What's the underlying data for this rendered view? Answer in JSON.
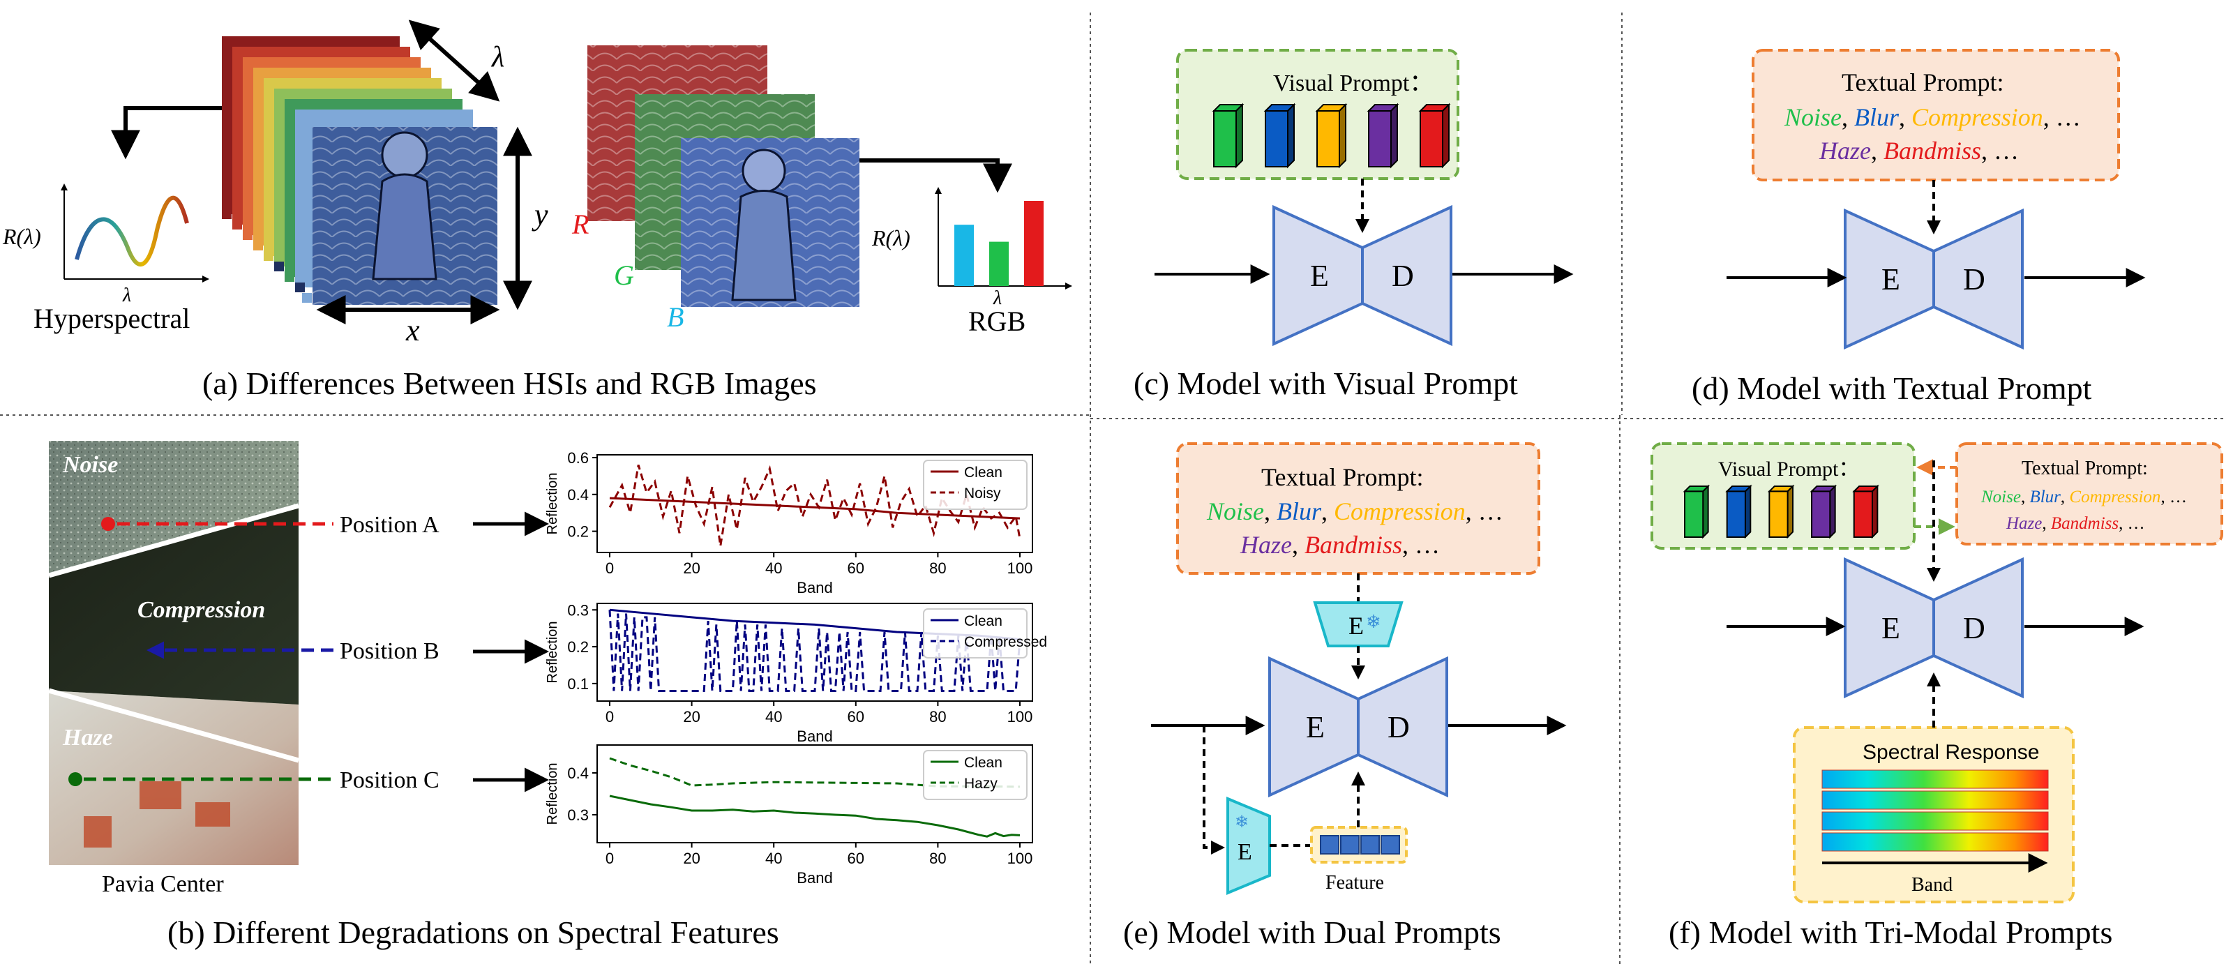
{
  "colors": {
    "red": "#e31a1c",
    "green": "#1fbf4a",
    "blue": "#0a5bc4",
    "yellow": "#ffb800",
    "purple": "#6a2fa0",
    "cyan": "#19b7e6",
    "navy": "#000080",
    "maroon": "#8b0000",
    "darkgreen": "#0a6b0a",
    "encoder": "#d6dcf0",
    "encoder_stroke": "#4472c4",
    "visual_box_fill": "#e8f3d9",
    "visual_box_stroke": "#70ad47",
    "textual_box_fill": "#fbe5d6",
    "textual_box_stroke": "#ed7d31",
    "spectral_box_fill": "#fff2cc",
    "spectral_box_stroke": "#f4c542"
  },
  "panel_a": {
    "caption": "(a) Differences Between HSIs and RGB Images",
    "hsi_label": "Hyperspectral",
    "rgb_label": "RGB",
    "axis_lambda": "λ",
    "axis_x": "x",
    "axis_y": "y",
    "reflectance_label": "R(λ)",
    "channel_r": "R",
    "channel_g": "G",
    "channel_b": "B",
    "rgb_bars": [
      {
        "name": "B",
        "value": 0.72,
        "color": "#19b7e6"
      },
      {
        "name": "G",
        "value": 0.52,
        "color": "#1fbf4a"
      },
      {
        "name": "R",
        "value": 1.0,
        "color": "#e31a1c"
      }
    ]
  },
  "panel_b": {
    "caption": "(b) Different Degradations on Spectral Features",
    "image_label": "Pavia Center",
    "regions": [
      {
        "label": "Noise",
        "position": "Position A"
      },
      {
        "label": "Compression",
        "position": "Position B"
      },
      {
        "label": "Haze",
        "position": "Position C"
      }
    ]
  },
  "panel_c": {
    "caption": "(c) Model with Visual Prompt",
    "prompt_title": "Visual Prompt：",
    "encoder": "E",
    "decoder": "D"
  },
  "panel_d": {
    "caption": "(d) Model with Textual Prompt",
    "prompt_title": "Textual Prompt:",
    "encoder": "E",
    "decoder": "D"
  },
  "panel_e": {
    "caption": "(e) Model with Dual Prompts",
    "prompt_title": "Textual Prompt:",
    "frozen_encoder": "E",
    "feature_label": "Feature",
    "encoder": "E",
    "decoder": "D"
  },
  "panel_f": {
    "caption": "(f) Model with Tri-Modal Prompts",
    "visual_title": "Visual Prompt：",
    "textual_title": "Textual Prompt:",
    "spectral_title": "Spectral Response",
    "band_label": "Band",
    "encoder": "E",
    "decoder": "D"
  },
  "degradation_words": [
    {
      "text": "Noise",
      "color": "#1fbf4a"
    },
    {
      "text": "Blur",
      "color": "#0a5bc4"
    },
    {
      "text": "Compression",
      "color": "#ffb800"
    },
    {
      "text": "Haze",
      "color": "#6a2fa0"
    },
    {
      "text": "Bandmiss",
      "color": "#e31a1c"
    }
  ],
  "ellipsis": "…",
  "chart_data": [
    {
      "type": "line",
      "title": "",
      "xlabel": "Band",
      "ylabel": "Reflection",
      "xlim": [
        0,
        100
      ],
      "ylim": [
        0.1,
        0.6
      ],
      "xticks": [
        0,
        20,
        40,
        60,
        80,
        100
      ],
      "yticks": [
        0.2,
        0.4,
        0.6
      ],
      "legend": "top-right",
      "series": [
        {
          "name": "Clean",
          "style": "solid",
          "color": "#8b0000",
          "x": [
            0,
            10,
            20,
            30,
            40,
            50,
            60,
            70,
            80,
            90,
            100
          ],
          "y": [
            0.38,
            0.37,
            0.36,
            0.35,
            0.34,
            0.33,
            0.32,
            0.3,
            0.29,
            0.28,
            0.27
          ]
        },
        {
          "name": "Noisy",
          "style": "dashed",
          "color": "#8b0000",
          "x": [
            0,
            3,
            5,
            7,
            9,
            11,
            13,
            15,
            17,
            19,
            21,
            23,
            25,
            27,
            29,
            31,
            33,
            35,
            37,
            39,
            41,
            43,
            45,
            47,
            49,
            51,
            53,
            55,
            57,
            59,
            61,
            63,
            65,
            67,
            69,
            71,
            73,
            75,
            77,
            79,
            81,
            83,
            85,
            87,
            89,
            91,
            93,
            95,
            97,
            99,
            100
          ],
          "y": [
            0.33,
            0.45,
            0.3,
            0.56,
            0.41,
            0.47,
            0.28,
            0.42,
            0.19,
            0.5,
            0.34,
            0.24,
            0.44,
            0.12,
            0.4,
            0.21,
            0.49,
            0.36,
            0.44,
            0.54,
            0.31,
            0.42,
            0.46,
            0.28,
            0.4,
            0.33,
            0.48,
            0.26,
            0.38,
            0.29,
            0.46,
            0.24,
            0.33,
            0.5,
            0.22,
            0.36,
            0.43,
            0.28,
            0.34,
            0.19,
            0.38,
            0.31,
            0.25,
            0.4,
            0.22,
            0.33,
            0.27,
            0.3,
            0.22,
            0.28,
            0.16
          ]
        }
      ]
    },
    {
      "type": "line",
      "title": "",
      "xlabel": "Band",
      "ylabel": "Reflection",
      "xlim": [
        0,
        100
      ],
      "ylim": [
        0.06,
        0.31
      ],
      "xticks": [
        0,
        20,
        40,
        60,
        80,
        100
      ],
      "yticks": [
        0.1,
        0.2,
        0.3
      ],
      "legend": "top-right",
      "series": [
        {
          "name": "Clean",
          "style": "solid",
          "color": "#000080",
          "x": [
            0,
            10,
            20,
            30,
            40,
            50,
            60,
            70,
            80,
            90,
            100
          ],
          "y": [
            0.3,
            0.29,
            0.28,
            0.27,
            0.265,
            0.26,
            0.25,
            0.24,
            0.235,
            0.23,
            0.22
          ]
        },
        {
          "name": "Compressed",
          "style": "dashed",
          "color": "#000080",
          "x": [
            0,
            1,
            2,
            3,
            4,
            5,
            6,
            7,
            8,
            9,
            10,
            11,
            12,
            13,
            14,
            15,
            16,
            17,
            18,
            19,
            20,
            21,
            22,
            23,
            24,
            25,
            26,
            27,
            28,
            29,
            30,
            31,
            32,
            33,
            34,
            35,
            36,
            37,
            38,
            39,
            40,
            41,
            42,
            43,
            44,
            45,
            46,
            47,
            48,
            49,
            50,
            51,
            52,
            53,
            54,
            55,
            56,
            57,
            58,
            59,
            60,
            61,
            62,
            63,
            64,
            65,
            66,
            67,
            68,
            69,
            70,
            71,
            72,
            73,
            74,
            75,
            76,
            77,
            78,
            79,
            80,
            81,
            82,
            83,
            84,
            85,
            86,
            87,
            88,
            89,
            90,
            91,
            92,
            93,
            94,
            95,
            96,
            97,
            98,
            99,
            100
          ],
          "y": [
            0.3,
            0.08,
            0.29,
            0.08,
            0.29,
            0.08,
            0.28,
            0.08,
            0.28,
            0.28,
            0.08,
            0.28,
            0.08,
            0.08,
            0.08,
            0.08,
            0.08,
            0.08,
            0.08,
            0.08,
            0.08,
            0.08,
            0.08,
            0.08,
            0.27,
            0.08,
            0.26,
            0.08,
            0.08,
            0.08,
            0.08,
            0.27,
            0.08,
            0.26,
            0.08,
            0.08,
            0.26,
            0.08,
            0.26,
            0.08,
            0.08,
            0.08,
            0.25,
            0.08,
            0.08,
            0.08,
            0.25,
            0.08,
            0.08,
            0.08,
            0.08,
            0.25,
            0.08,
            0.24,
            0.08,
            0.08,
            0.24,
            0.08,
            0.24,
            0.08,
            0.08,
            0.24,
            0.08,
            0.08,
            0.08,
            0.08,
            0.08,
            0.24,
            0.08,
            0.08,
            0.08,
            0.08,
            0.24,
            0.08,
            0.08,
            0.08,
            0.24,
            0.08,
            0.08,
            0.08,
            0.23,
            0.08,
            0.08,
            0.08,
            0.08,
            0.23,
            0.08,
            0.23,
            0.08,
            0.08,
            0.08,
            0.08,
            0.08,
            0.23,
            0.08,
            0.23,
            0.08,
            0.08,
            0.08,
            0.08,
            0.22
          ]
        }
      ]
    },
    {
      "type": "line",
      "title": "",
      "xlabel": "Band",
      "ylabel": "Reflection",
      "xlim": [
        0,
        100
      ],
      "ylim": [
        0.24,
        0.46
      ],
      "xticks": [
        0,
        20,
        40,
        60,
        80,
        100
      ],
      "yticks": [
        0.3,
        0.4
      ],
      "legend": "top-right",
      "series": [
        {
          "name": "Clean",
          "style": "solid",
          "color": "#0a6b0a",
          "x": [
            0,
            5,
            10,
            15,
            20,
            25,
            30,
            35,
            40,
            45,
            50,
            55,
            60,
            65,
            70,
            75,
            80,
            85,
            90,
            92,
            94,
            96,
            98,
            100
          ],
          "y": [
            0.345,
            0.335,
            0.325,
            0.318,
            0.31,
            0.31,
            0.312,
            0.308,
            0.31,
            0.305,
            0.303,
            0.3,
            0.298,
            0.29,
            0.287,
            0.283,
            0.275,
            0.265,
            0.252,
            0.248,
            0.256,
            0.249,
            0.252,
            0.251
          ]
        },
        {
          "name": "Hazy",
          "style": "dashed",
          "color": "#0a6b0a",
          "x": [
            0,
            5,
            10,
            15,
            20,
            25,
            30,
            40,
            50,
            60,
            70,
            80,
            90,
            100
          ],
          "y": [
            0.435,
            0.418,
            0.405,
            0.39,
            0.37,
            0.372,
            0.375,
            0.378,
            0.377,
            0.376,
            0.375,
            0.368,
            0.368,
            0.367
          ]
        }
      ]
    }
  ]
}
